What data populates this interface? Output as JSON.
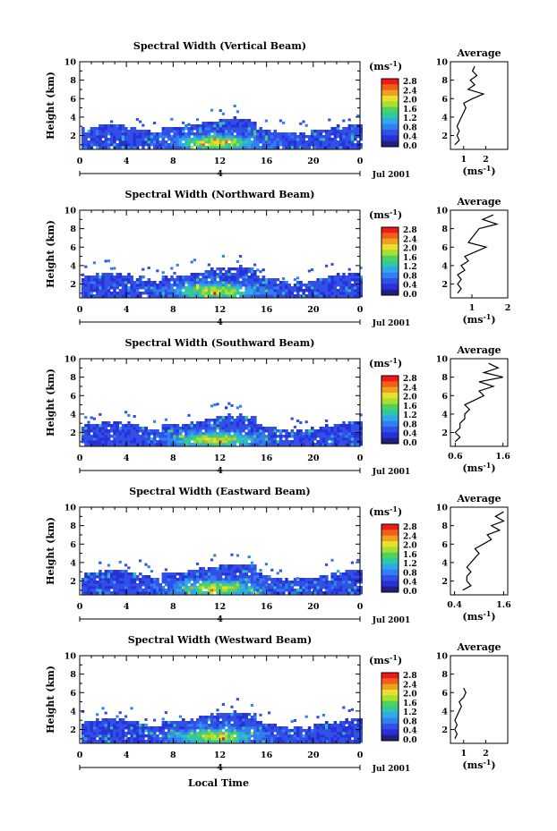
{
  "figure": {
    "bottom_label": "Local Time",
    "date_label": "Jul 2001",
    "colorbar_unit_base": "(ms",
    "colorbar_unit_exp": "-1",
    "colorbar_unit_close": ")",
    "day_label": "4"
  },
  "colorbar": {
    "ticks": [
      "2.8",
      "2.4",
      "2.0",
      "1.6",
      "1.2",
      "0.8",
      "0.4",
      "0.0"
    ],
    "colors": [
      "#f01818",
      "#f06018",
      "#f0a020",
      "#e8e030",
      "#a8e030",
      "#50d060",
      "#30c8a0",
      "#30a8e8",
      "#3080f0",
      "#3050e8",
      "#2830d8",
      "#202080"
    ]
  },
  "chart_data": [
    {
      "type": "heatmap",
      "title": "Spectral Width (Vertical Beam)",
      "xlabel": "Local Time",
      "ylabel": "Height (km)",
      "xlim": [
        0,
        24
      ],
      "ylim": [
        0.5,
        10
      ],
      "xticks": [
        "0",
        "4",
        "8",
        "12",
        "16",
        "20",
        "0"
      ],
      "yticks": [
        "2",
        "4",
        "6",
        "8",
        "10"
      ],
      "colorbar_range": [
        0.0,
        3.0
      ],
      "profile": {
        "title": "Average",
        "xticks": [
          "1",
          "2"
        ],
        "xlim": [
          0.4,
          3.0
        ],
        "xlabel": "(ms-1)",
        "heights": [
          1,
          1.5,
          2,
          2.5,
          3,
          3.5,
          4,
          4.5,
          5,
          5.5,
          6,
          6.5,
          7,
          7.5,
          8,
          8.5,
          9,
          9.5
        ],
        "values": [
          0.6,
          0.8,
          0.7,
          0.8,
          0.7,
          0.8,
          0.9,
          1.0,
          1.1,
          1.0,
          1.4,
          1.9,
          1.2,
          1.5,
          1.3,
          1.6,
          1.4,
          1.5
        ]
      }
    },
    {
      "type": "heatmap",
      "title": "Spectral Width (Northward Beam)",
      "xlabel": "Local Time",
      "ylabel": "Height (km)",
      "xlim": [
        0,
        24
      ],
      "ylim": [
        0.5,
        10
      ],
      "xticks": [
        "0",
        "4",
        "8",
        "12",
        "16",
        "20",
        "0"
      ],
      "yticks": [
        "2",
        "4",
        "6",
        "8",
        "10"
      ],
      "colorbar_range": [
        0.0,
        3.0
      ],
      "profile": {
        "title": "Average",
        "xticks": [
          "1",
          "2"
        ],
        "xlim": [
          0.4,
          2.0
        ],
        "xlabel": "(ms-1)",
        "heights": [
          1,
          1.5,
          2,
          2.5,
          3,
          3.5,
          4,
          4.5,
          5,
          5.5,
          6,
          6.5,
          7,
          7.5,
          8,
          8.5,
          9,
          9.5
        ],
        "values": [
          0.6,
          0.7,
          0.6,
          0.7,
          0.6,
          0.8,
          0.7,
          0.9,
          0.8,
          1.1,
          1.4,
          0.9,
          1.0,
          1.1,
          1.2,
          1.7,
          1.3,
          1.6
        ]
      }
    },
    {
      "type": "heatmap",
      "title": "Spectral Width (Southward Beam)",
      "xlabel": "Local Time",
      "ylabel": "Height (km)",
      "xlim": [
        0,
        24
      ],
      "ylim": [
        0.5,
        10
      ],
      "xticks": [
        "0",
        "4",
        "8",
        "12",
        "16",
        "20",
        "0"
      ],
      "yticks": [
        "2",
        "4",
        "6",
        "8",
        "10"
      ],
      "colorbar_range": [
        0.0,
        3.0
      ],
      "profile": {
        "title": "Average",
        "xticks": [
          "0.6",
          "1.6"
        ],
        "xlim": [
          0.5,
          1.7
        ],
        "xlabel": "(ms-1)",
        "heights": [
          1,
          1.5,
          2,
          2.5,
          3,
          3.5,
          4,
          4.5,
          5,
          5.5,
          6,
          6.5,
          7,
          7.5,
          8,
          8.5,
          9,
          9.5
        ],
        "values": [
          0.6,
          0.7,
          0.6,
          0.7,
          0.7,
          0.8,
          0.8,
          0.9,
          0.8,
          1.0,
          1.2,
          1.1,
          1.4,
          1.1,
          1.6,
          1.2,
          1.5,
          1.3
        ]
      }
    },
    {
      "type": "heatmap",
      "title": "Spectral Width (Eastward Beam)",
      "xlabel": "Local Time",
      "ylabel": "Height (km)",
      "xlim": [
        0,
        24
      ],
      "ylim": [
        0.5,
        10
      ],
      "xticks": [
        "0",
        "4",
        "8",
        "12",
        "16",
        "20",
        "0"
      ],
      "yticks": [
        "2",
        "4",
        "6",
        "8",
        "10"
      ],
      "colorbar_range": [
        0.0,
        3.0
      ],
      "profile": {
        "title": "Average",
        "xticks": [
          "0.4",
          "1.6"
        ],
        "xlim": [
          0.3,
          1.7
        ],
        "xlabel": "(ms-1)",
        "heights": [
          1,
          1.5,
          2,
          2.5,
          3,
          3.5,
          4,
          4.5,
          5,
          5.5,
          6,
          6.5,
          7,
          7.5,
          8,
          8.5,
          9,
          9.5
        ],
        "values": [
          0.6,
          0.8,
          0.7,
          0.7,
          0.8,
          0.7,
          0.8,
          0.9,
          1.0,
          0.9,
          1.1,
          1.3,
          1.2,
          1.5,
          1.3,
          1.6,
          1.4,
          1.6
        ]
      }
    },
    {
      "type": "heatmap",
      "title": "Spectral Width (Westward Beam)",
      "xlabel": "Local Time",
      "ylabel": "Height (km)",
      "xlim": [
        0,
        24
      ],
      "ylim": [
        0.5,
        10
      ],
      "xticks": [
        "0",
        "4",
        "8",
        "12",
        "16",
        "20",
        "0"
      ],
      "yticks": [
        "2",
        "4",
        "6",
        "8",
        "10"
      ],
      "colorbar_range": [
        0.0,
        3.0
      ],
      "profile": {
        "title": "Average",
        "xticks": [
          "1",
          "2"
        ],
        "xlim": [
          0.4,
          3.0
        ],
        "xlabel": "(ms-1)",
        "heights": [
          1,
          1.5,
          2,
          2.5,
          3,
          3.5,
          4,
          4.5,
          5,
          5.5,
          6,
          6.5
        ],
        "values": [
          0.6,
          0.7,
          0.6,
          0.7,
          0.6,
          0.7,
          0.8,
          0.9,
          0.8,
          1.0,
          1.1,
          1.0
        ]
      }
    }
  ]
}
